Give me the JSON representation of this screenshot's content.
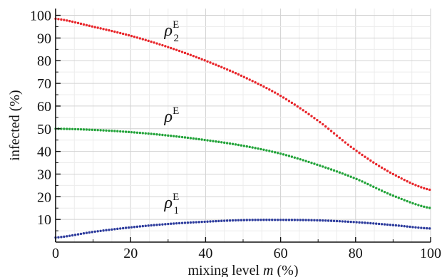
{
  "chart_data": {
    "type": "scatter",
    "xlabel": "mixing level",
    "xlabel_var": "m",
    "xlabel_unit": "(%)",
    "ylabel": "infected (%)",
    "xlim": [
      0,
      100
    ],
    "ylim": [
      0,
      103
    ],
    "x_ticks": [
      "0",
      "20",
      "40",
      "60",
      "80",
      "100"
    ],
    "y_ticks": [
      "10",
      "20",
      "30",
      "40",
      "50",
      "60",
      "70",
      "80",
      "90",
      "100"
    ],
    "grid": true,
    "legend": "inline labels",
    "series": [
      {
        "symbol": "ρ",
        "superscript": "E",
        "subscript": "2",
        "color": "#e8262b",
        "x": [
          0,
          10,
          20,
          30,
          40,
          50,
          60,
          70,
          80,
          90,
          100
        ],
        "y": [
          98.5,
          95,
          91,
          86,
          80,
          73,
          64.5,
          53.5,
          40.5,
          30,
          23
        ]
      },
      {
        "symbol": "ρ",
        "superscript": "E",
        "subscript": "",
        "color": "#22a339",
        "x": [
          0,
          10,
          20,
          30,
          40,
          50,
          60,
          70,
          80,
          90,
          100
        ],
        "y": [
          50,
          49.5,
          48.5,
          47,
          45,
          42.5,
          39,
          34,
          28,
          20.5,
          15
        ]
      },
      {
        "symbol": "ρ",
        "superscript": "E",
        "subscript": "1",
        "color": "#2b3a9c",
        "x": [
          0,
          10,
          20,
          30,
          40,
          50,
          60,
          70,
          80,
          90,
          100
        ],
        "y": [
          2,
          4.5,
          6.5,
          8,
          9,
          9.7,
          9.8,
          9.6,
          8.8,
          7.5,
          6
        ]
      }
    ],
    "labels": [
      {
        "series": 0,
        "x": 29,
        "y": 91
      },
      {
        "series": 1,
        "x": 29,
        "y": 53
      },
      {
        "series": 2,
        "x": 29,
        "y": 15
      }
    ]
  }
}
